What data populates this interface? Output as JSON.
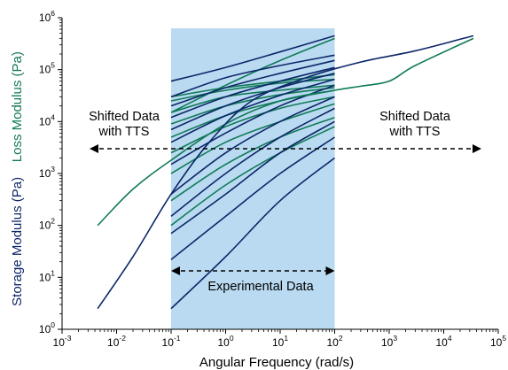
{
  "chart_data": {
    "type": "line",
    "xscale": "log",
    "yscale": "log",
    "xlim": [
      0.001,
      100000
    ],
    "ylim": [
      1,
      1000000
    ],
    "xlabel": "Angular Frequency (rad/s)",
    "ylabel_storage": "Storage Modulus (Pa)",
    "ylabel_loss": "Loss Modulus (Pa)",
    "x_ticks": [
      {
        "value": 0.001,
        "base": "10",
        "exp": "-3"
      },
      {
        "value": 0.01,
        "base": "10",
        "exp": "-2"
      },
      {
        "value": 0.1,
        "base": "10",
        "exp": "-1"
      },
      {
        "value": 1,
        "base": "10",
        "exp": "0"
      },
      {
        "value": 10,
        "base": "10",
        "exp": "1"
      },
      {
        "value": 100,
        "base": "10",
        "exp": "2"
      },
      {
        "value": 1000,
        "base": "10",
        "exp": "3"
      },
      {
        "value": 10000,
        "base": "10",
        "exp": "4"
      },
      {
        "value": 100000,
        "base": "10",
        "exp": "5"
      }
    ],
    "y_ticks": [
      {
        "value": 1,
        "base": "10",
        "exp": "0"
      },
      {
        "value": 10,
        "base": "10",
        "exp": "1"
      },
      {
        "value": 100,
        "base": "10",
        "exp": "2"
      },
      {
        "value": 1000,
        "base": "10",
        "exp": "3"
      },
      {
        "value": 10000,
        "base": "10",
        "exp": "4"
      },
      {
        "value": 100000,
        "base": "10",
        "exp": "5"
      },
      {
        "value": 1000000,
        "base": "10",
        "exp": "6"
      }
    ],
    "experimental_range": [
      0.1,
      100
    ],
    "shifted_range": [
      0.0045,
      10000
    ],
    "shifted_arrow_y": 3000,
    "experimental_arrow_y": 15,
    "annotations": {
      "shifted_left": [
        "Shifted Data",
        "with TTS"
      ],
      "shifted_right": [
        "Shifted Data",
        "with TTS"
      ],
      "experimental": "Experimental Data"
    },
    "master_storage": {
      "x": [
        0.0045,
        0.02,
        0.1,
        0.5,
        3,
        30,
        300,
        3000,
        35000
      ],
      "y": [
        2.5,
        25,
        400,
        4000,
        25000,
        70000,
        140000,
        230000,
        450000
      ]
    },
    "master_loss": {
      "x": [
        0.0045,
        0.02,
        0.1,
        1,
        10,
        100,
        300,
        1000,
        3000,
        35000
      ],
      "y": [
        100,
        500,
        1800,
        9000,
        25000,
        40000,
        48000,
        60000,
        120000,
        400000
      ]
    },
    "storage_segments": [
      {
        "x": [
          0.1,
          1,
          10,
          100
        ],
        "y": [
          60000,
          110000,
          220000,
          450000
        ]
      },
      {
        "x": [
          0.1,
          1,
          10,
          100
        ],
        "y": [
          30000,
          70000,
          120000,
          190000
        ]
      },
      {
        "x": [
          0.1,
          1,
          10,
          100
        ],
        "y": [
          20000,
          45000,
          85000,
          150000
        ]
      },
      {
        "x": [
          0.1,
          1,
          10,
          100
        ],
        "y": [
          12000,
          30000,
          60000,
          110000
        ]
      },
      {
        "x": [
          0.1,
          1,
          10,
          100
        ],
        "y": [
          7000,
          20000,
          45000,
          85000
        ]
      },
      {
        "x": [
          0.1,
          1,
          10,
          100
        ],
        "y": [
          4000,
          13000,
          32000,
          65000
        ]
      },
      {
        "x": [
          0.1,
          1,
          10,
          100
        ],
        "y": [
          1500,
          6000,
          20000,
          50000
        ]
      },
      {
        "x": [
          0.1,
          1,
          10,
          100
        ],
        "y": [
          400,
          2500,
          10000,
          30000
        ]
      },
      {
        "x": [
          0.1,
          1,
          10,
          100
        ],
        "y": [
          150,
          1000,
          5000,
          18000
        ]
      },
      {
        "x": [
          0.1,
          1,
          10,
          100
        ],
        "y": [
          70,
          400,
          2500,
          10000
        ]
      },
      {
        "x": [
          0.1,
          1,
          10,
          100
        ],
        "y": [
          22,
          150,
          1000,
          5000
        ]
      },
      {
        "x": [
          0.1,
          1,
          10,
          100
        ],
        "y": [
          2.5,
          25,
          300,
          2000
        ]
      }
    ],
    "loss_segments": [
      {
        "x": [
          0.1,
          1,
          10,
          100
        ],
        "y": [
          30000,
          45000,
          60000,
          80000
        ]
      },
      {
        "x": [
          0.1,
          1,
          10,
          100
        ],
        "y": [
          25000,
          40000,
          55000,
          65000
        ]
      },
      {
        "x": [
          0.1,
          1,
          10,
          100
        ],
        "y": [
          15000,
          30000,
          40000,
          50000
        ]
      },
      {
        "x": [
          0.1,
          1,
          10,
          100
        ],
        "y": [
          9000,
          20000,
          33000,
          45000
        ]
      },
      {
        "x": [
          0.1,
          1,
          10,
          100
        ],
        "y": [
          5000,
          13000,
          25000,
          40000
        ]
      },
      {
        "x": [
          0.1,
          1,
          10,
          100
        ],
        "y": [
          2500,
          8000,
          18000,
          30000
        ]
      },
      {
        "x": [
          0.1,
          1,
          10,
          100
        ],
        "y": [
          1000,
          4000,
          10000,
          22000
        ]
      },
      {
        "x": [
          0.1,
          1,
          10,
          100
        ],
        "y": [
          300,
          1500,
          5000,
          12000
        ]
      },
      {
        "x": [
          0.1,
          1,
          10,
          100
        ],
        "y": [
          100,
          600,
          2500,
          8000
        ]
      },
      {
        "x": [
          0.1,
          1,
          10,
          100
        ],
        "y": [
          15000,
          50000,
          150000,
          400000
        ]
      }
    ],
    "colors": {
      "storage": "#0c2668",
      "loss": "#117a57",
      "experimental_band": "#b9daf1",
      "axis": "#000000",
      "arrow": "#000000"
    },
    "grid": false
  }
}
